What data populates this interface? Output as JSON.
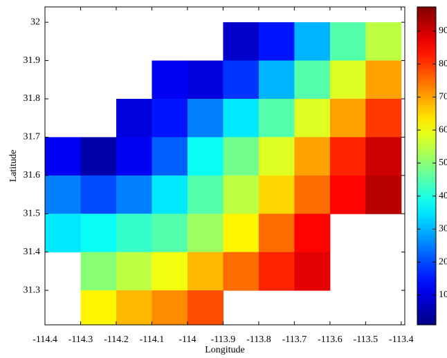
{
  "chart_data": {
    "type": "heatmap",
    "xlabel": "Longitude",
    "ylabel": "Latitude",
    "colormap": "jet",
    "x": [
      -114.35,
      -114.25,
      -114.15,
      -114.05,
      -113.95,
      -113.85,
      -113.75,
      -113.65,
      -113.55,
      -113.45
    ],
    "y": [
      31.95,
      31.85,
      31.75,
      31.65,
      31.55,
      31.45,
      31.35,
      31.25
    ],
    "z": [
      [
        null,
        null,
        null,
        null,
        null,
        8,
        15,
        30,
        45,
        55
      ],
      [
        null,
        null,
        null,
        12,
        10,
        18,
        30,
        45,
        58,
        70
      ],
      [
        null,
        null,
        10,
        15,
        25,
        35,
        45,
        58,
        70,
        80
      ],
      [
        12,
        5,
        12,
        22,
        38,
        48,
        58,
        70,
        82,
        90
      ],
      [
        25,
        20,
        25,
        35,
        45,
        55,
        65,
        75,
        85,
        92
      ],
      [
        35,
        38,
        42,
        45,
        52,
        62,
        75,
        85,
        null,
        null
      ],
      [
        null,
        50,
        55,
        60,
        68,
        75,
        82,
        88,
        null,
        null
      ],
      [
        null,
        62,
        68,
        72,
        78,
        null,
        null,
        null,
        null,
        null
      ]
    ],
    "xlim": [
      -114.4,
      -113.39
    ],
    "ylim": [
      31.21,
      32.04
    ],
    "xticks": [
      -114.4,
      -114.3,
      -114.2,
      -114.1,
      -114,
      -113.9,
      -113.8,
      -113.7,
      -113.6,
      -113.5,
      -113.4
    ],
    "yticks": [
      31.3,
      31.4,
      31.5,
      31.6,
      31.7,
      31.8,
      31.9,
      32
    ],
    "clim": [
      1,
      97.3
    ],
    "cticks": [
      10,
      20,
      30,
      40,
      50,
      60,
      70,
      80,
      90
    ]
  }
}
